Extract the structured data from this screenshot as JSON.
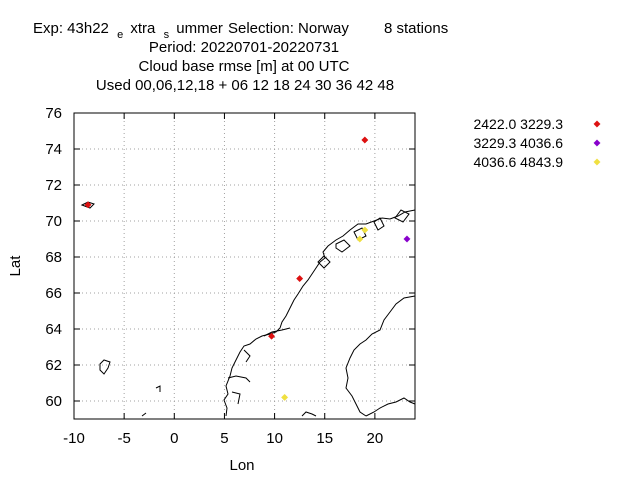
{
  "chart_data": {
    "type": "scatter",
    "title": {
      "line1_parts": [
        "Exp: 43h22",
        "e",
        "xtra",
        "s",
        "ummer",
        "Selection: Norway",
        "8 stations"
      ],
      "line2": "Period: 20220701-20220731",
      "line3": "Cloud base rmse [m] at  00 UTC",
      "line4": "Used  00,06,12,18  + 06 12 18 24 30 36 42 48"
    },
    "xlabel": "Lon",
    "ylabel": "Lat",
    "xlim": [
      -10,
      24
    ],
    "ylim": [
      59,
      76
    ],
    "xticks": [
      -10,
      -5,
      0,
      5,
      10,
      15,
      20
    ],
    "yticks": [
      60,
      62,
      64,
      66,
      68,
      70,
      72,
      74,
      76
    ],
    "grid": true,
    "legend_position": "right",
    "series": [
      {
        "name": "2422.0 3229.3",
        "color": "#dd1111",
        "points": [
          {
            "x": -8.6,
            "y": 70.9
          },
          {
            "x": 19.0,
            "y": 74.5
          },
          {
            "x": 12.5,
            "y": 66.8
          },
          {
            "x": 9.7,
            "y": 63.6
          }
        ]
      },
      {
        "name": "3229.3 4036.6",
        "color": "#8800cc",
        "points": [
          {
            "x": 23.2,
            "y": 69.0
          }
        ]
      },
      {
        "name": "4036.6 4843.9",
        "color": "#f0e040",
        "points": [
          {
            "x": 18.5,
            "y": 69.0
          },
          {
            "x": 19.0,
            "y": 69.5
          },
          {
            "x": 11.0,
            "y": 60.2
          }
        ]
      }
    ]
  }
}
